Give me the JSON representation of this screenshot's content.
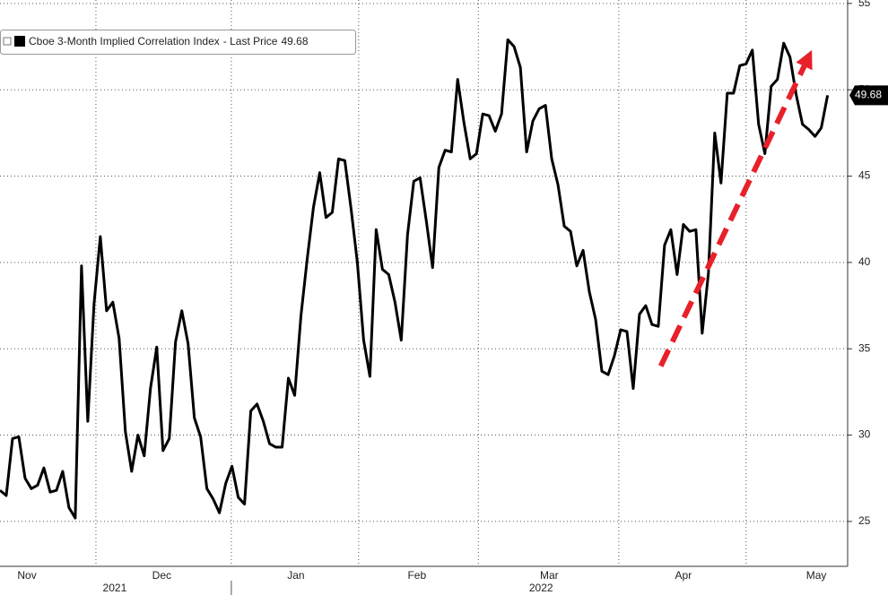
{
  "chart_data": {
    "type": "line",
    "series": [
      {
        "name": "Cboe 3-Month Implied Correlation Index",
        "color": "#000000",
        "values": [
          26.8,
          26.5,
          29.8,
          29.9,
          27.5,
          26.9,
          27.1,
          28.1,
          26.7,
          26.8,
          27.9,
          25.8,
          25.2,
          39.8,
          30.8,
          37.6,
          41.5,
          37.2,
          37.7,
          35.6,
          30.2,
          27.9,
          30.0,
          28.8,
          32.7,
          35.1,
          29.1,
          29.8,
          35.4,
          37.2,
          35.3,
          31.0,
          29.9,
          26.9,
          26.3,
          25.5,
          27.2,
          28.2,
          26.4,
          26.0,
          31.4,
          31.8,
          30.8,
          29.5,
          29.3,
          29.3,
          33.3,
          32.3,
          36.9,
          40.2,
          43.2,
          45.2,
          42.6,
          42.9,
          46.0,
          45.9,
          43.1,
          40.0,
          35.5,
          33.4,
          41.9,
          39.6,
          39.3,
          37.7,
          35.5,
          41.6,
          44.7,
          44.9,
          42.4,
          39.7,
          45.5,
          46.5,
          46.4,
          50.6,
          48.1,
          46.0,
          46.3,
          48.6,
          48.5,
          47.6,
          48.6,
          52.9,
          52.5,
          51.3,
          46.4,
          48.2,
          48.9,
          49.1,
          46.0,
          44.5,
          42.1,
          41.8,
          39.8,
          40.7,
          38.3,
          36.7,
          33.7,
          33.5,
          34.6,
          36.1,
          36.0,
          32.7,
          37.0,
          37.5,
          36.4,
          36.3,
          41.0,
          41.9,
          39.3,
          42.2,
          41.8,
          41.9,
          35.9,
          39.4,
          47.5,
          44.6,
          49.8,
          49.8,
          51.4,
          51.5,
          52.3,
          48.0,
          46.3,
          50.2,
          50.6,
          52.7,
          51.9,
          49.7,
          48.0,
          47.7,
          47.3,
          47.8,
          49.68
        ]
      }
    ],
    "legend_price_label": "- Last Price",
    "xlim": [
      0,
      135.2
    ],
    "ylim": [
      22.4,
      55.2
    ],
    "yticks": [
      25,
      30,
      35,
      40,
      45,
      50,
      55
    ],
    "xticks": [
      {
        "value": 4.3,
        "label": "Nov"
      },
      {
        "value": 25.8,
        "label": "Dec"
      },
      {
        "value": 47.2,
        "label": "Jan"
      },
      {
        "value": 66.5,
        "label": "Feb"
      },
      {
        "value": 87.6,
        "label": "Mar"
      },
      {
        "value": 109.0,
        "label": "Apr"
      },
      {
        "value": 130.2,
        "label": "May"
      }
    ],
    "xgrid": [
      15.3,
      36.9,
      57.2,
      76.3,
      98.7,
      119.0
    ],
    "years": [
      {
        "value": 18.3,
        "label": "2021"
      },
      {
        "value": 86.3,
        "label": "2022"
      }
    ],
    "year_separator": 36.9,
    "grid": true,
    "arrow": {
      "from": [
        105.4,
        34.0
      ],
      "to": [
        129.5,
        52.3
      ],
      "color": "#e8202a"
    }
  }
}
